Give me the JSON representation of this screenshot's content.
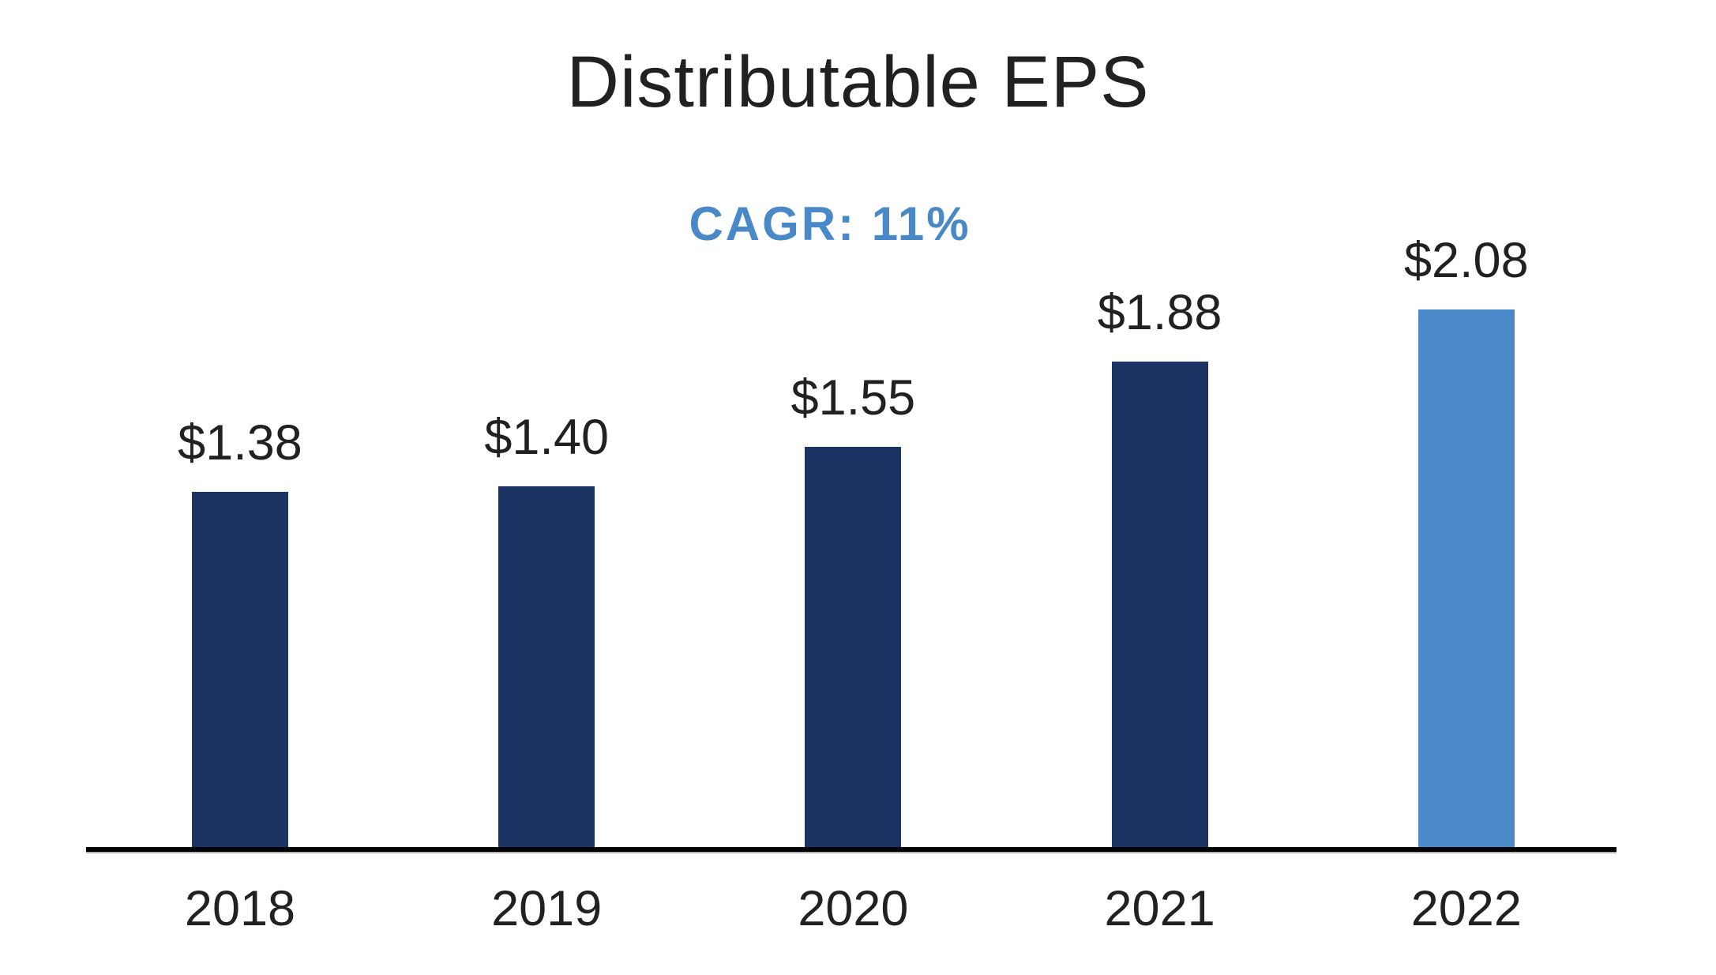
{
  "chart_data": {
    "type": "bar",
    "title": "Distributable EPS",
    "annotation": "CAGR: 11%",
    "categories": [
      "2018",
      "2019",
      "2020",
      "2021",
      "2022"
    ],
    "values": [
      1.38,
      1.4,
      1.55,
      1.88,
      2.08
    ],
    "value_labels": [
      "$1.38",
      "$1.40",
      "$1.55",
      "$1.88",
      "$2.08"
    ],
    "series": [
      {
        "name": "Distributable EPS",
        "values": [
          1.38,
          1.4,
          1.55,
          1.88,
          2.08
        ]
      }
    ],
    "bar_colors": [
      "#1A3363",
      "#1A3363",
      "#1A3363",
      "#1A3363",
      "#4A8ACB"
    ],
    "colors": {
      "navy_bar": "#1A3363",
      "highlight_bar": "#4A8ACB",
      "annotation_blue": "#4A89C8",
      "text": "#212121",
      "axis": "#000000",
      "background": "#ffffff"
    },
    "xlabel": "",
    "ylabel": "",
    "ylim": [
      0,
      2.3
    ],
    "grid": false,
    "legend": null
  }
}
